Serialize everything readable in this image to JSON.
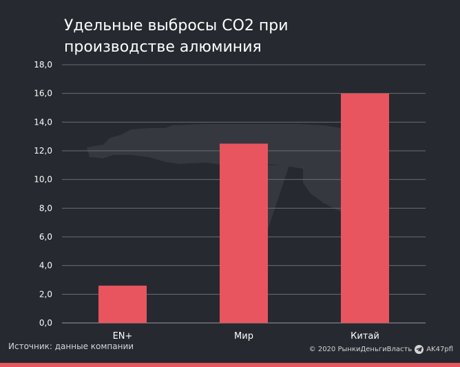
{
  "header": {
    "title": "Удельные выбросы CO2 при производстве алюминия"
  },
  "footer": {
    "source": "Источник: данные компании",
    "copyright": "© 2020 РынкиДеньгиВласть",
    "channel": "AK47pfl",
    "channel_icon": "telegram-icon"
  },
  "colors": {
    "background": "#262930",
    "bar": "#e8555e",
    "grid": "#6b6e74"
  },
  "chart_data": {
    "type": "bar",
    "title": "Удельные выбросы CO2 при производстве алюминия",
    "categories": [
      "EN+",
      "Мир",
      "Китай"
    ],
    "values": [
      2.6,
      12.5,
      16.0
    ],
    "ylim": [
      0,
      18
    ],
    "yticks": [
      "0,0",
      "2,0",
      "4,0",
      "6,0",
      "8,0",
      "10,0",
      "12,0",
      "14,0",
      "16,0",
      "18,0"
    ],
    "xlabel": "",
    "ylabel": "",
    "grid": true,
    "legend": "none"
  }
}
